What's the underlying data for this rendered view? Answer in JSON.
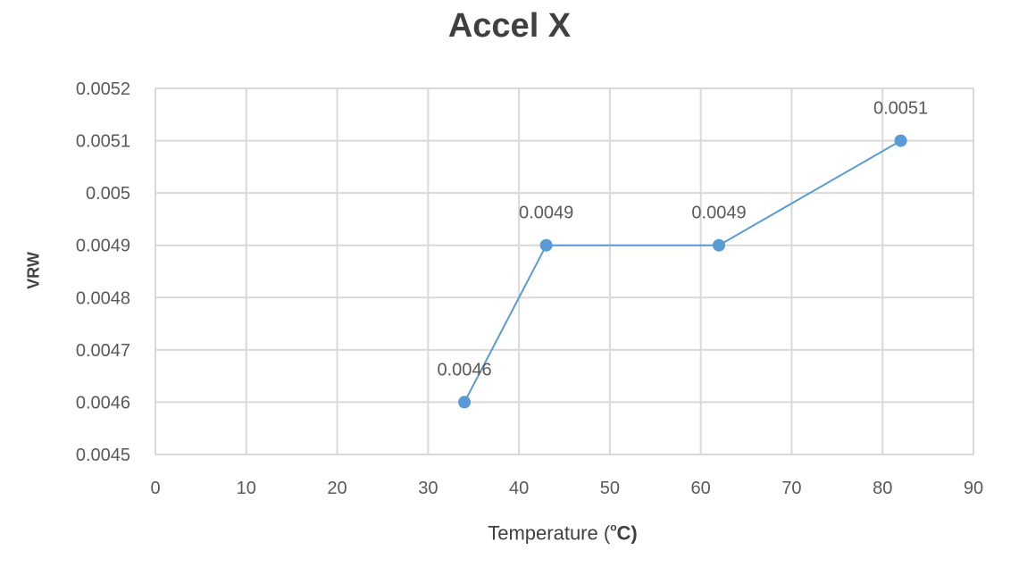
{
  "chart_data": {
    "type": "scatter",
    "title": "Accel X",
    "xlabel_text": "Temperature (",
    "xlabel_sup": "o",
    "xlabel_unit": "C)",
    "ylabel": "VRW",
    "xlim": [
      0,
      90
    ],
    "ylim": [
      0.0045,
      0.0052
    ],
    "x_ticks": [
      "0",
      "10",
      "20",
      "30",
      "40",
      "50",
      "60",
      "70",
      "80",
      "90"
    ],
    "y_ticks": [
      "0.0045",
      "0.0046",
      "0.0047",
      "0.0048",
      "0.0049",
      "0.005",
      "0.0051",
      "0.0052"
    ],
    "grid": true,
    "legend": false,
    "series": [
      {
        "x": [
          34,
          43,
          62,
          82
        ],
        "y": [
          0.0046,
          0.0049,
          0.0049,
          0.0051
        ],
        "labels": [
          "0.0046",
          "0.0049",
          "0.0049",
          "0.0051"
        ],
        "color": "#5b9bd5",
        "connected": true
      }
    ],
    "gridline_color": "#d9d9d9"
  }
}
